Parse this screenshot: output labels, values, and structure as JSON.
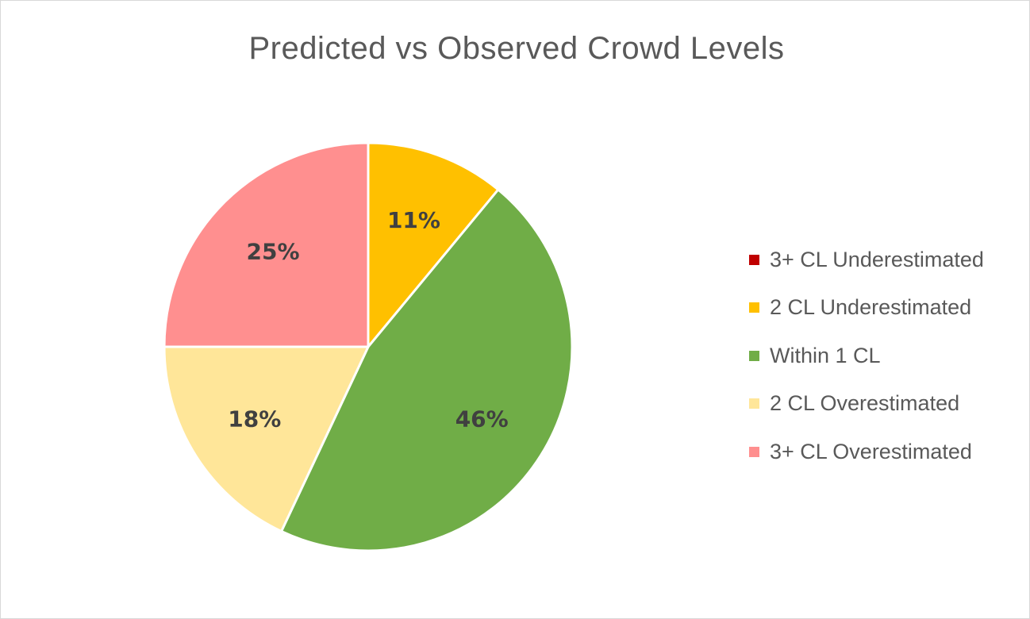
{
  "chart_data": {
    "type": "pie",
    "title": "Predicted vs Observed Crowd Levels",
    "legend_position": "right",
    "slices": [
      {
        "label": "3+ CL Underestimated",
        "value": 0,
        "color": "#C00000",
        "display": ""
      },
      {
        "label": "2 CL Underestimated",
        "value": 11,
        "color": "#FFC000",
        "display": "11%"
      },
      {
        "label": "Within 1 CL",
        "value": 46,
        "color": "#70AD47",
        "display": "46%"
      },
      {
        "label": "2 CL Overestimated",
        "value": 18,
        "color": "#FFE699",
        "display": "18%"
      },
      {
        "label": "3+ CL Overestimated",
        "value": 25,
        "color": "#FF8F8F",
        "display": "25%"
      }
    ]
  }
}
